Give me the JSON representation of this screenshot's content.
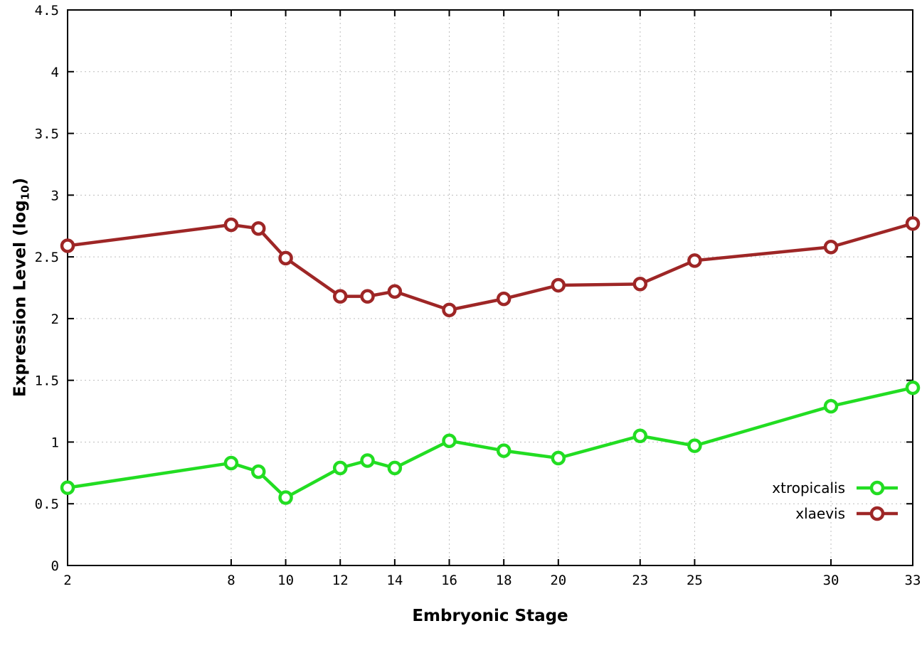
{
  "chart_data": {
    "type": "line",
    "title": "",
    "xlabel": "Embryonic Stage",
    "ylabel_prefix": "Expression Level (log",
    "ylabel_sub": "10",
    "ylabel_suffix": ")",
    "xlim": [
      2,
      33
    ],
    "ylim": [
      0,
      4.5
    ],
    "x_ticks": [
      2,
      8,
      10,
      12,
      14,
      16,
      18,
      20,
      23,
      25,
      30,
      33
    ],
    "y_ticks": [
      0,
      0.5,
      1,
      1.5,
      2,
      2.5,
      3,
      3.5,
      4,
      4.5
    ],
    "y_tick_labels": [
      "0",
      "0.5",
      "1",
      "1.5",
      "2",
      "2.5",
      "3",
      "3.5",
      "4",
      "4.5"
    ],
    "grid": true,
    "legend_position": "bottom-right",
    "x": [
      2,
      8,
      9,
      10,
      12,
      13,
      14,
      16,
      18,
      20,
      23,
      25,
      30,
      33
    ],
    "series": [
      {
        "name": "xtropicalis",
        "color": "#22dd22",
        "values": [
          0.63,
          0.83,
          0.76,
          0.55,
          0.79,
          0.85,
          0.79,
          1.01,
          0.93,
          0.87,
          1.05,
          0.97,
          1.29,
          1.44
        ]
      },
      {
        "name": "xlaevis",
        "color": "#9e2626",
        "values": [
          2.59,
          2.76,
          2.73,
          2.49,
          2.18,
          2.18,
          2.22,
          2.07,
          2.16,
          2.27,
          2.28,
          2.47,
          2.58,
          2.77
        ]
      }
    ]
  }
}
